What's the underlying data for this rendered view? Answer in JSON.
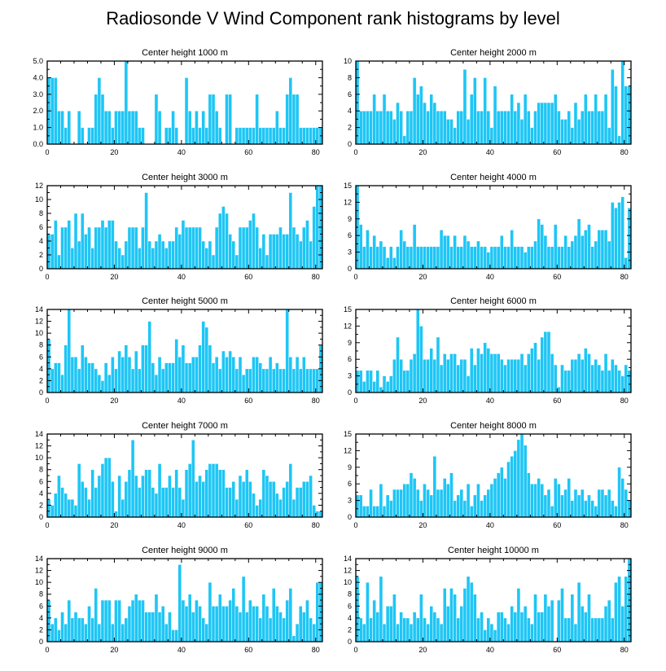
{
  "title": "Radiosonde V Wind Component rank histograms by level",
  "chart_data": [
    {
      "type": "bar",
      "title": "Center height 1000 m",
      "xlim": [
        0,
        82
      ],
      "ylim": [
        0,
        5
      ],
      "xticks": [
        0,
        20,
        40,
        60,
        80
      ],
      "yticks": [
        0,
        1,
        2,
        3,
        4,
        5
      ],
      "yticklabels": [
        "0.0",
        "1.0",
        "2.0",
        "3.0",
        "4.0",
        "5.0"
      ],
      "values": [
        4,
        4,
        4,
        2,
        2,
        1,
        2,
        0,
        0,
        2,
        1,
        0,
        1,
        1,
        3,
        4,
        3,
        2,
        2,
        1,
        2,
        2,
        2,
        5,
        2,
        2,
        2,
        1,
        1,
        0,
        0,
        0,
        3,
        2,
        0,
        1,
        1,
        2,
        1,
        0,
        0,
        4,
        2,
        1,
        2,
        1,
        2,
        1,
        3,
        3,
        2,
        1,
        0,
        3,
        3,
        0,
        1,
        1,
        1,
        1,
        1,
        1,
        3,
        1,
        1,
        1,
        1,
        1,
        2,
        1,
        1,
        3,
        4,
        3,
        3,
        1,
        1,
        1,
        1,
        1,
        1,
        1
      ]
    },
    {
      "type": "bar",
      "title": "Center height 2000 m",
      "xlim": [
        0,
        82
      ],
      "ylim": [
        0,
        10
      ],
      "xticks": [
        0,
        20,
        40,
        60,
        80
      ],
      "yticks": [
        0,
        2,
        4,
        6,
        8,
        10
      ],
      "yticklabels": [
        "0",
        "2",
        "4",
        "6",
        "8",
        "10"
      ],
      "values": [
        10,
        4,
        4,
        4,
        4,
        6,
        4,
        4,
        6,
        4,
        4,
        3,
        5,
        4,
        1,
        4,
        4,
        8,
        6,
        7,
        5,
        4,
        6,
        5,
        4,
        4,
        4,
        3,
        3,
        2,
        4,
        4,
        9,
        3,
        6,
        8,
        4,
        4,
        8,
        4,
        2,
        7,
        4,
        4,
        4,
        4,
        6,
        4,
        5,
        3,
        6,
        4,
        2,
        4,
        5,
        5,
        5,
        5,
        5,
        6,
        4,
        3,
        3,
        4,
        2,
        5,
        3,
        4,
        6,
        4,
        4,
        6,
        4,
        4,
        6,
        2,
        9,
        7,
        1,
        10,
        7,
        7
      ]
    },
    {
      "type": "bar",
      "title": "Center height 3000 m",
      "xlim": [
        0,
        82
      ],
      "ylim": [
        0,
        12
      ],
      "xticks": [
        0,
        20,
        40,
        60,
        80
      ],
      "yticks": [
        0,
        2,
        4,
        6,
        8,
        10,
        12
      ],
      "yticklabels": [
        "0",
        "2",
        "4",
        "6",
        "8",
        "10",
        "12"
      ],
      "values": [
        5,
        5,
        7,
        2,
        6,
        6,
        7,
        3,
        8,
        4,
        8,
        5,
        6,
        3,
        6,
        6,
        7,
        6,
        7,
        7,
        4,
        3,
        2,
        4,
        6,
        6,
        6,
        3,
        6,
        11,
        4,
        3,
        4,
        5,
        4,
        3,
        4,
        4,
        6,
        5,
        7,
        6,
        6,
        6,
        6,
        6,
        4,
        3,
        4,
        2,
        6,
        8,
        9,
        8,
        5,
        4,
        2,
        6,
        6,
        6,
        7,
        8,
        6,
        3,
        5,
        2,
        5,
        5,
        5,
        6,
        5,
        5,
        11,
        6,
        5,
        4,
        6,
        7,
        4,
        9,
        12,
        12
      ]
    },
    {
      "type": "bar",
      "title": "Center height 4000 m",
      "xlim": [
        0,
        82
      ],
      "ylim": [
        0,
        15
      ],
      "xticks": [
        0,
        20,
        40,
        60,
        80
      ],
      "yticks": [
        0,
        3,
        6,
        9,
        12,
        15
      ],
      "yticklabels": [
        "0",
        "3",
        "6",
        "9",
        "12",
        "15"
      ],
      "values": [
        15,
        8,
        4,
        7,
        4,
        6,
        4,
        5,
        4,
        2,
        4,
        2,
        4,
        7,
        5,
        4,
        4,
        8,
        4,
        4,
        4,
        4,
        4,
        4,
        4,
        7,
        6,
        6,
        4,
        6,
        4,
        4,
        6,
        5,
        4,
        4,
        5,
        4,
        4,
        3,
        4,
        4,
        4,
        6,
        4,
        4,
        7,
        4,
        4,
        4,
        3,
        4,
        4,
        5,
        9,
        8,
        6,
        4,
        4,
        8,
        4,
        4,
        6,
        4,
        5,
        6,
        9,
        6,
        7,
        8,
        4,
        5,
        7,
        7,
        7,
        5,
        12,
        11,
        12,
        13,
        2,
        11
      ]
    },
    {
      "type": "bar",
      "title": "Center height 5000 m",
      "xlim": [
        0,
        82
      ],
      "ylim": [
        0,
        14
      ],
      "xticks": [
        0,
        20,
        40,
        60,
        80
      ],
      "yticks": [
        0,
        2,
        4,
        6,
        8,
        10,
        12,
        14
      ],
      "yticklabels": [
        "0",
        "2",
        "4",
        "6",
        "8",
        "10",
        "12",
        "14"
      ],
      "values": [
        9,
        4,
        5,
        5,
        3,
        8,
        14,
        6,
        6,
        4,
        8,
        6,
        5,
        5,
        4,
        3,
        2,
        5,
        3,
        6,
        4,
        7,
        6,
        8,
        6,
        4,
        7,
        4,
        8,
        8,
        12,
        5,
        3,
        6,
        4,
        5,
        5,
        5,
        9,
        6,
        8,
        5,
        5,
        6,
        6,
        8,
        12,
        11,
        8,
        5,
        6,
        4,
        7,
        6,
        7,
        6,
        4,
        6,
        3,
        4,
        4,
        6,
        6,
        5,
        4,
        4,
        6,
        4,
        5,
        4,
        4,
        14,
        6,
        4,
        6,
        4,
        6,
        4,
        4,
        4,
        4,
        8
      ]
    },
    {
      "type": "bar",
      "title": "Center height 6000 m",
      "xlim": [
        0,
        82
      ],
      "ylim": [
        0,
        15
      ],
      "xticks": [
        0,
        20,
        40,
        60,
        80
      ],
      "yticks": [
        0,
        3,
        6,
        9,
        12,
        15
      ],
      "yticklabels": [
        "0",
        "3",
        "6",
        "9",
        "12",
        "15"
      ],
      "values": [
        4,
        4,
        2,
        4,
        4,
        2,
        4,
        1,
        3,
        2,
        3,
        6,
        10,
        6,
        4,
        4,
        6,
        7,
        15,
        12,
        6,
        6,
        8,
        6,
        10,
        5,
        7,
        6,
        7,
        7,
        5,
        6,
        6,
        3,
        8,
        5,
        8,
        7,
        9,
        8,
        7,
        7,
        7,
        6,
        5,
        6,
        6,
        6,
        6,
        7,
        5,
        7,
        8,
        9,
        6,
        10,
        11,
        11,
        7,
        5,
        1,
        5,
        4,
        4,
        6,
        6,
        7,
        6,
        8,
        7,
        5,
        6,
        5,
        4,
        7,
        4,
        6,
        5,
        4,
        3,
        5,
        4
      ]
    },
    {
      "type": "bar",
      "title": "Center height 7000 m",
      "xlim": [
        0,
        82
      ],
      "ylim": [
        0,
        14
      ],
      "xticks": [
        0,
        20,
        40,
        60,
        80
      ],
      "yticks": [
        0,
        2,
        4,
        6,
        8,
        10,
        12,
        14
      ],
      "yticklabels": [
        "0",
        "2",
        "4",
        "6",
        "8",
        "10",
        "12",
        "14"
      ],
      "values": [
        3,
        2,
        4,
        7,
        5,
        4,
        3,
        3,
        2,
        9,
        6,
        5,
        3,
        8,
        5,
        7,
        9,
        10,
        10,
        6,
        1,
        7,
        3,
        6,
        8,
        13,
        7,
        5,
        7,
        8,
        8,
        5,
        4,
        9,
        5,
        5,
        7,
        5,
        8,
        5,
        3,
        8,
        9,
        13,
        6,
        7,
        6,
        8,
        9,
        9,
        9,
        8,
        8,
        5,
        5,
        6,
        3,
        7,
        6,
        8,
        6,
        4,
        2,
        3,
        8,
        7,
        6,
        6,
        4,
        3,
        5,
        6,
        9,
        3,
        5,
        5,
        6,
        6,
        7,
        2,
        1,
        1
      ]
    },
    {
      "type": "bar",
      "title": "Center height 8000 m",
      "xlim": [
        0,
        82
      ],
      "ylim": [
        0,
        15
      ],
      "xticks": [
        0,
        20,
        40,
        60,
        80
      ],
      "yticks": [
        0,
        3,
        6,
        9,
        12,
        15
      ],
      "yticklabels": [
        "0",
        "3",
        "6",
        "9",
        "12",
        "15"
      ],
      "values": [
        4,
        4,
        2,
        2,
        5,
        2,
        2,
        6,
        2,
        4,
        3,
        5,
        5,
        5,
        6,
        6,
        8,
        7,
        5,
        3,
        6,
        5,
        4,
        11,
        5,
        5,
        7,
        6,
        8,
        3,
        4,
        5,
        3,
        6,
        2,
        4,
        6,
        3,
        4,
        5,
        6,
        7,
        8,
        9,
        7,
        10,
        11,
        12,
        14,
        15,
        13,
        8,
        6,
        6,
        7,
        6,
        4,
        5,
        2,
        7,
        6,
        4,
        5,
        7,
        3,
        5,
        4,
        5,
        3,
        4,
        3,
        2,
        5,
        5,
        4,
        5,
        3,
        2,
        9,
        7,
        5,
        3
      ]
    },
    {
      "type": "bar",
      "title": "Center height 9000 m",
      "xlim": [
        0,
        82
      ],
      "ylim": [
        0,
        14
      ],
      "xticks": [
        0,
        20,
        40,
        60,
        80
      ],
      "yticks": [
        0,
        2,
        4,
        6,
        8,
        10,
        12,
        14
      ],
      "yticklabels": [
        "0",
        "2",
        "4",
        "6",
        "8",
        "10",
        "12",
        "14"
      ],
      "values": [
        7,
        3,
        4,
        2,
        5,
        3,
        7,
        4,
        5,
        4,
        4,
        3,
        6,
        4,
        9,
        3,
        7,
        7,
        7,
        3,
        7,
        7,
        3,
        4,
        6,
        7,
        8,
        7,
        7,
        5,
        5,
        5,
        8,
        5,
        6,
        3,
        5,
        2,
        2,
        13,
        7,
        6,
        8,
        5,
        7,
        6,
        4,
        3,
        10,
        6,
        6,
        8,
        6,
        6,
        7,
        9,
        6,
        5,
        11,
        5,
        7,
        6,
        6,
        4,
        8,
        6,
        4,
        9,
        6,
        5,
        4,
        7,
        9,
        1,
        3,
        6,
        5,
        7,
        4,
        3,
        10,
        10
      ]
    },
    {
      "type": "bar",
      "title": "Center height 10000 m",
      "xlim": [
        0,
        82
      ],
      "ylim": [
        0,
        14
      ],
      "xticks": [
        0,
        20,
        40,
        60,
        80
      ],
      "yticks": [
        0,
        2,
        4,
        6,
        8,
        10,
        12,
        14
      ],
      "yticklabels": [
        "0",
        "2",
        "4",
        "6",
        "8",
        "10",
        "12",
        "14"
      ],
      "values": [
        11,
        4,
        3,
        10,
        4,
        7,
        5,
        11,
        3,
        6,
        6,
        8,
        3,
        5,
        4,
        4,
        3,
        5,
        4,
        8,
        4,
        3,
        6,
        5,
        4,
        3,
        9,
        6,
        9,
        8,
        4,
        6,
        9,
        11,
        10,
        8,
        4,
        5,
        2,
        4,
        3,
        2,
        5,
        5,
        4,
        3,
        6,
        5,
        9,
        5,
        6,
        4,
        3,
        8,
        5,
        5,
        8,
        6,
        7,
        0,
        7,
        9,
        4,
        4,
        8,
        3,
        10,
        6,
        5,
        8,
        4,
        4,
        4,
        4,
        6,
        7,
        4,
        10,
        11,
        6,
        11,
        14
      ]
    }
  ]
}
